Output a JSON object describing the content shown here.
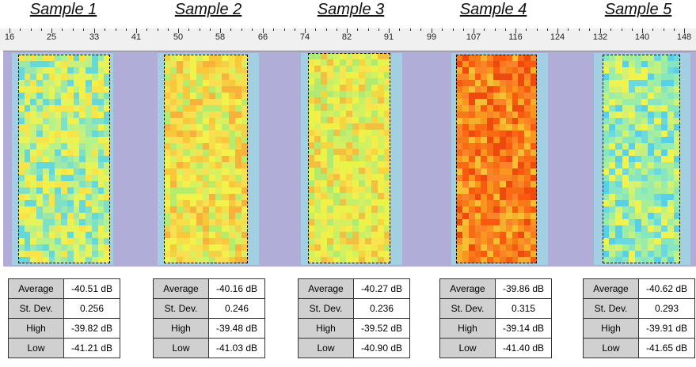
{
  "titles": [
    "Sample 1",
    "Sample 2",
    "Sample 3",
    "Sample 4",
    "Sample 5"
  ],
  "ruler": {
    "labels": [
      "16",
      "25",
      "33",
      "41",
      "50",
      "58",
      "66",
      "74",
      "82",
      "91",
      "99",
      "107",
      "116",
      "124",
      "132",
      "140",
      "148"
    ]
  },
  "samples": [
    {
      "name": "Sample 1",
      "stats": [
        [
          "Average",
          "-40.51 dB"
        ],
        [
          "St. Dev.",
          "0.256"
        ],
        [
          "High",
          "-39.82 dB"
        ],
        [
          "Low",
          "-41.21 dB"
        ]
      ]
    },
    {
      "name": "Sample 2",
      "stats": [
        [
          "Average",
          "-40.16 dB"
        ],
        [
          "St. Dev.",
          "0.246"
        ],
        [
          "High",
          "-39.48 dB"
        ],
        [
          "Low",
          "-41.03 dB"
        ]
      ]
    },
    {
      "name": "Sample 3",
      "stats": [
        [
          "Average",
          "-40.27 dB"
        ],
        [
          "St. Dev.",
          "0.236"
        ],
        [
          "High",
          "-39.52 dB"
        ],
        [
          "Low",
          "-40.90 dB"
        ]
      ]
    },
    {
      "name": "Sample 4",
      "stats": [
        [
          "Average",
          "-39.86 dB"
        ],
        [
          "St. Dev.",
          "0.315"
        ],
        [
          "High",
          "-39.14 dB"
        ],
        [
          "Low",
          "-41.40 dB"
        ]
      ]
    },
    {
      "name": "Sample 5",
      "stats": [
        [
          "Average",
          "-40.62 dB"
        ],
        [
          "St. Dev.",
          "0.293"
        ],
        [
          "High",
          "-39.91 dB"
        ],
        [
          "Low",
          "-41.65 dB"
        ]
      ]
    }
  ],
  "colors": {
    "background_band": "#b0aed9",
    "halo": "#9fd9e6",
    "label_cell": "#d0d0d0"
  }
}
